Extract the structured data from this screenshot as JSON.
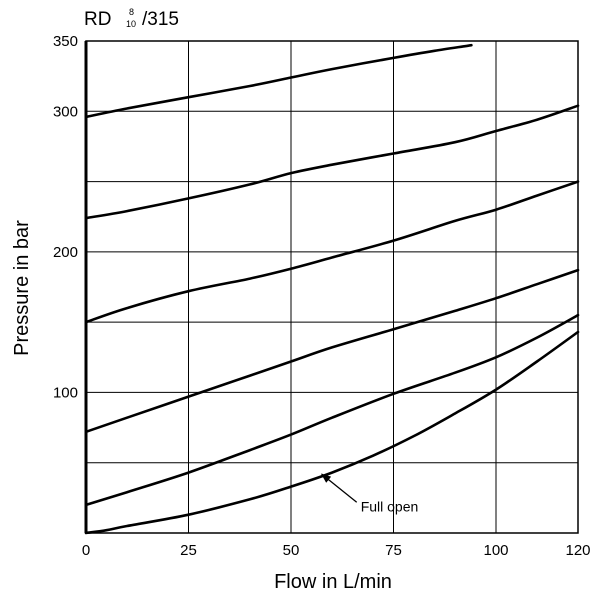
{
  "chart_data": {
    "type": "line",
    "title": {
      "prefix": "RD",
      "frac_top": "8",
      "frac_bottom": "10",
      "suffix": "/315"
    },
    "xlabel": "Flow in L/min",
    "ylabel": "Pressure in bar",
    "xlim": [
      0,
      120
    ],
    "ylim": [
      0,
      350
    ],
    "x_ticks": [
      0,
      25,
      50,
      75,
      100,
      120
    ],
    "y_ticks": [
      100,
      200,
      300,
      350
    ],
    "x_grid": [
      25,
      50,
      75,
      100
    ],
    "y_grid": [
      50,
      100,
      150,
      200,
      250,
      300
    ],
    "grid": true,
    "series": [
      {
        "x": [
          0,
          10,
          25,
          40,
          50,
          60,
          75,
          85,
          94
        ],
        "y": [
          296,
          302,
          310,
          318,
          324,
          330,
          338,
          343,
          347
        ]
      },
      {
        "x": [
          0,
          10,
          25,
          40,
          50,
          60,
          75,
          90,
          100,
          110,
          120
        ],
        "y": [
          224,
          229,
          238,
          248,
          256,
          262,
          270,
          278,
          286,
          294,
          304
        ]
      },
      {
        "x": [
          0,
          10,
          25,
          40,
          50,
          60,
          75,
          90,
          100,
          110,
          120
        ],
        "y": [
          150,
          160,
          172,
          181,
          188,
          196,
          208,
          222,
          230,
          240,
          250
        ]
      },
      {
        "x": [
          0,
          10,
          25,
          40,
          50,
          60,
          75,
          90,
          100,
          110,
          120
        ],
        "y": [
          72,
          82,
          97,
          112,
          122,
          132,
          145,
          158,
          167,
          177,
          187
        ]
      },
      {
        "x": [
          0,
          10,
          25,
          40,
          50,
          60,
          75,
          90,
          100,
          110,
          120
        ],
        "y": [
          20,
          29,
          43,
          59,
          70,
          82,
          99,
          114,
          125,
          139,
          155
        ]
      },
      {
        "x": [
          0,
          5,
          10,
          25,
          40,
          50,
          60,
          70,
          80,
          90,
          100,
          110,
          120
        ],
        "y": [
          0,
          2,
          5,
          13,
          24,
          33,
          43,
          55,
          69,
          85,
          102,
          122,
          143
        ]
      }
    ],
    "annotations": [
      {
        "text": "Full open",
        "target": {
          "x": 57,
          "y": 44
        },
        "label_pos": {
          "x": 67,
          "y": 19
        }
      }
    ]
  }
}
